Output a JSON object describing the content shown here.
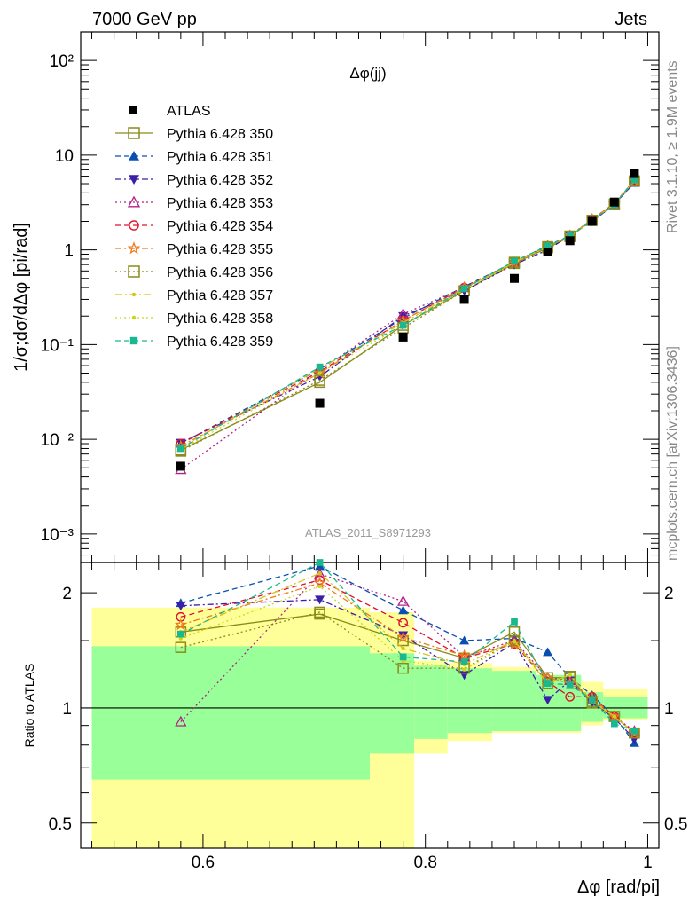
{
  "header": {
    "left": "7000 GeV pp",
    "right": "Jets",
    "side_right_top": "Rivet 3.1.10, ≥ 1.9M events",
    "side_right_bottom": "mcplots.cern.ch [arXiv:1306.3436]"
  },
  "chart_data": [
    {
      "type": "line",
      "title": "Δφ(jj)",
      "subtitle_watermark": "ATLAS_2011_S8971293",
      "ylabel": "1/σ;dσ/dΔφ [pi/rad]",
      "yscale": "log",
      "ylim": [
        0.0005,
        200
      ],
      "xlim": [
        0.49,
        1.01
      ],
      "y_tick_labels": [
        "10⁻³",
        "10⁻²",
        "10⁻¹",
        "1",
        "10",
        "10²"
      ],
      "x": [
        0.58,
        0.705,
        0.78,
        0.835,
        0.88,
        0.91,
        0.93,
        0.95,
        0.97,
        0.988
      ],
      "data": {
        "name": "ATLAS",
        "values": [
          0.0052,
          0.024,
          0.12,
          0.3,
          0.5,
          0.95,
          1.25,
          2.0,
          3.2,
          6.4
        ]
      },
      "series": [
        {
          "name": "Pythia 6.428 350",
          "color": "#8b8b1a",
          "values": [
            0.0077,
            0.04,
            0.16,
            0.37,
            0.72,
            1.05,
            1.38,
            2.05,
            3.0,
            5.3
          ]
        },
        {
          "name": "Pythia 6.428 351",
          "color": "#0a4fb0",
          "values": [
            0.009,
            0.055,
            0.19,
            0.41,
            0.74,
            1.12,
            1.4,
            2.08,
            3.05,
            5.1
          ]
        },
        {
          "name": "Pythia 6.428 352",
          "color": "#3a1fa8",
          "values": [
            0.0092,
            0.046,
            0.2,
            0.37,
            0.7,
            1.0,
            1.42,
            2.0,
            3.0,
            5.2
          ]
        },
        {
          "name": "Pythia 6.428 353",
          "color": "#b0208a",
          "values": [
            0.0048,
            0.054,
            0.21,
            0.4,
            0.73,
            1.1,
            1.42,
            2.1,
            3.05,
            5.3
          ]
        },
        {
          "name": "Pythia 6.428 354",
          "color": "#e0102a",
          "values": [
            0.009,
            0.052,
            0.18,
            0.4,
            0.73,
            1.1,
            1.35,
            2.1,
            3.1,
            5.4
          ]
        },
        {
          "name": "Pythia 6.428 355",
          "color": "#f07a1a",
          "values": [
            0.0085,
            0.05,
            0.18,
            0.4,
            0.73,
            1.1,
            1.4,
            2.1,
            3.05,
            5.4
          ]
        },
        {
          "name": "Pythia 6.428 356",
          "color": "#8b8b1a",
          "values": [
            0.0075,
            0.042,
            0.15,
            0.37,
            0.74,
            1.08,
            1.4,
            2.05,
            3.05,
            5.35
          ]
        },
        {
          "name": "Pythia 6.428 357",
          "color": "#d6c21a",
          "values": [
            0.0082,
            0.056,
            0.17,
            0.39,
            0.74,
            1.1,
            1.38,
            2.05,
            3.05,
            5.4
          ]
        },
        {
          "name": "Pythia 6.428 358",
          "color": "#c9d61a",
          "values": [
            0.0078,
            0.05,
            0.16,
            0.38,
            0.73,
            1.08,
            1.4,
            2.05,
            3.05,
            5.4
          ]
        },
        {
          "name": "Pythia 6.428 359",
          "color": "#1ab890",
          "values": [
            0.008,
            0.058,
            0.16,
            0.39,
            0.76,
            1.1,
            1.4,
            2.05,
            3.0,
            5.5
          ]
        }
      ]
    },
    {
      "type": "line",
      "ylabel": "Ratio to ATLAS",
      "xlabel": "Δφ [rad/pi]",
      "yscale": "log",
      "ylim": [
        0.43,
        2.4
      ],
      "xlim": [
        0.49,
        1.01
      ],
      "y_tick_labels": [
        "0.5",
        "1",
        "2"
      ],
      "x_tick_labels": [
        "0.6",
        "0.8",
        "1"
      ],
      "bands": {
        "edges": [
          0.5,
          0.66,
          0.75,
          0.79,
          0.82,
          0.86,
          0.9,
          0.94,
          0.96,
          1.0
        ],
        "green_lo": [
          0.65,
          0.65,
          0.76,
          0.83,
          0.86,
          0.87,
          0.87,
          0.92,
          0.94
        ],
        "green_hi": [
          1.45,
          1.45,
          1.39,
          1.29,
          1.27,
          1.25,
          1.22,
          1.1,
          1.07
        ],
        "yellow_lo": [
          0.42,
          0.42,
          0.37,
          0.76,
          0.82,
          0.86,
          0.86,
          0.9,
          0.93
        ],
        "yellow_hi": [
          1.83,
          1.83,
          1.78,
          1.33,
          1.31,
          1.28,
          1.22,
          1.17,
          1.12
        ]
      },
      "series": [
        {
          "name": "Pythia 6.428 350",
          "values": [
            1.58,
            1.76,
            1.5,
            1.35,
            1.58,
            1.2,
            1.2,
            1.03,
            0.95,
            0.86
          ]
        },
        {
          "name": "Pythia 6.428 351",
          "values": [
            1.88,
            2.35,
            1.8,
            1.5,
            1.52,
            1.4,
            1.2,
            1.08,
            0.95,
            0.81
          ]
        },
        {
          "name": "Pythia 6.428 352",
          "values": [
            1.85,
            1.92,
            1.55,
            1.22,
            1.48,
            1.05,
            1.18,
            1.03,
            0.94,
            0.83
          ]
        },
        {
          "name": "Pythia 6.428 353",
          "values": [
            0.92,
            2.24,
            1.9,
            1.36,
            1.5,
            1.2,
            1.18,
            1.05,
            0.95,
            0.87
          ]
        },
        {
          "name": "Pythia 6.428 354",
          "values": [
            1.73,
            2.16,
            1.67,
            1.35,
            1.47,
            1.17,
            1.07,
            1.07,
            0.95,
            0.86
          ]
        },
        {
          "name": "Pythia 6.428 355",
          "values": [
            1.65,
            2.12,
            1.53,
            1.37,
            1.47,
            1.2,
            1.16,
            1.06,
            0.95,
            0.86
          ]
        },
        {
          "name": "Pythia 6.428 356",
          "values": [
            1.44,
            1.78,
            1.27,
            1.27,
            1.5,
            1.16,
            1.21,
            1.04,
            0.95,
            0.86
          ]
        },
        {
          "name": "Pythia 6.428 357",
          "values": [
            1.58,
            2.25,
            1.43,
            1.3,
            1.5,
            1.16,
            1.22,
            1.04,
            0.95,
            0.86
          ]
        },
        {
          "name": "Pythia 6.428 358",
          "values": [
            1.52,
            2.08,
            1.33,
            1.26,
            1.49,
            1.16,
            1.22,
            1.04,
            0.95,
            0.86
          ]
        },
        {
          "name": "Pythia 6.428 359",
          "values": [
            1.56,
            2.4,
            1.36,
            1.32,
            1.68,
            1.16,
            1.15,
            1.05,
            0.91,
            0.87
          ]
        }
      ]
    }
  ]
}
